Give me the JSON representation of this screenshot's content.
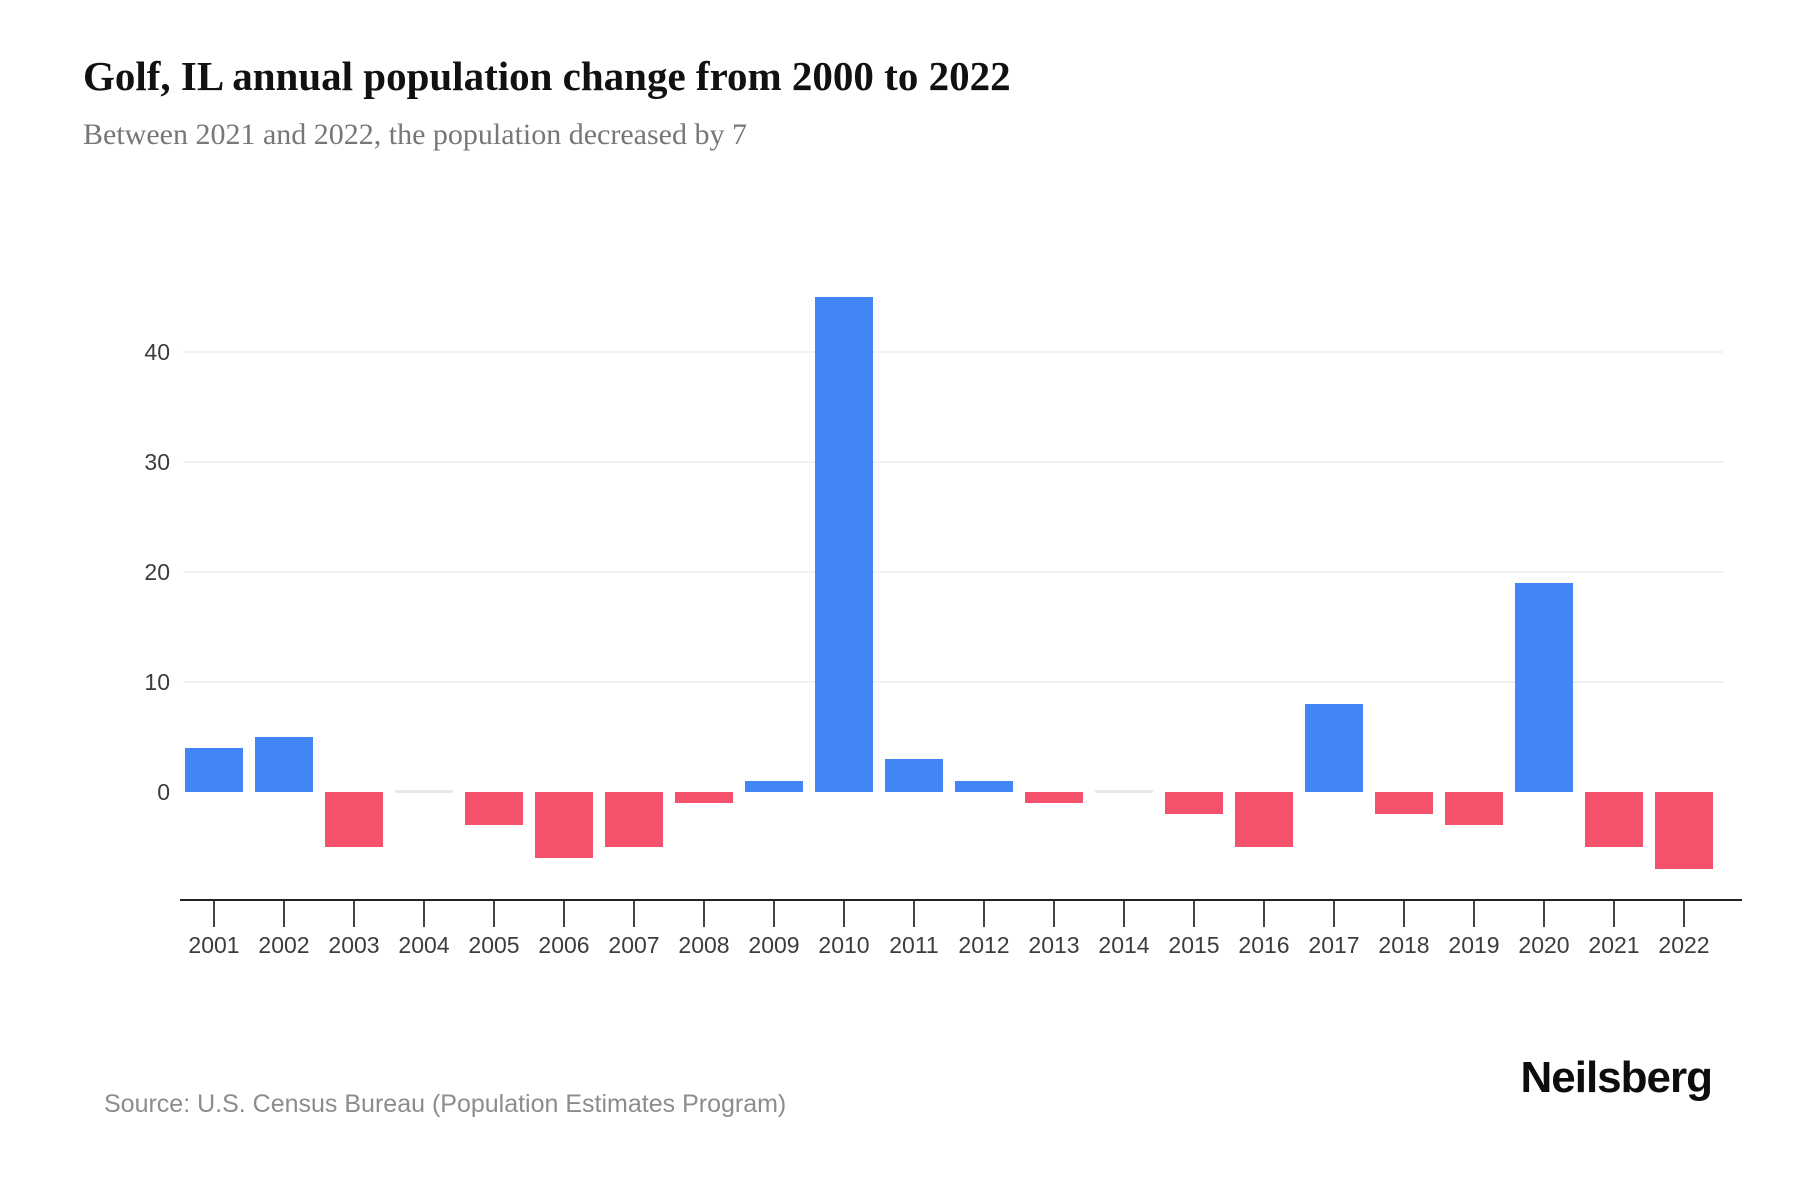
{
  "header": {
    "title": "Golf, IL annual population change from 2000 to 2022",
    "subtitle": "Between 2021 and 2022, the population decreased by 7"
  },
  "chart_data": {
    "type": "bar",
    "title": "Golf, IL annual population change from 2000 to 2022",
    "categories": [
      "2001",
      "2002",
      "2003",
      "2004",
      "2005",
      "2006",
      "2007",
      "2008",
      "2009",
      "2010",
      "2011",
      "2012",
      "2013",
      "2014",
      "2015",
      "2016",
      "2017",
      "2018",
      "2019",
      "2020",
      "2021",
      "2022"
    ],
    "values": [
      4,
      5,
      -5,
      0,
      -3,
      -6,
      -5,
      -1,
      1,
      45,
      3,
      1,
      -1,
      0,
      -2,
      -5,
      8,
      -2,
      -3,
      19,
      -5,
      -7
    ],
    "xlabel": "",
    "ylabel": "",
    "yticks": [
      0,
      10,
      20,
      30,
      40
    ],
    "ylim": [
      -7,
      45
    ],
    "grid": true,
    "legend": false,
    "colors": {
      "positive": "#4285F4",
      "negative": "#F4516C",
      "zero": "#E7E7E7"
    }
  },
  "footer": {
    "source": "Source: U.S. Census Bureau (Population Estimates Program)",
    "logo": "Neilsberg"
  }
}
